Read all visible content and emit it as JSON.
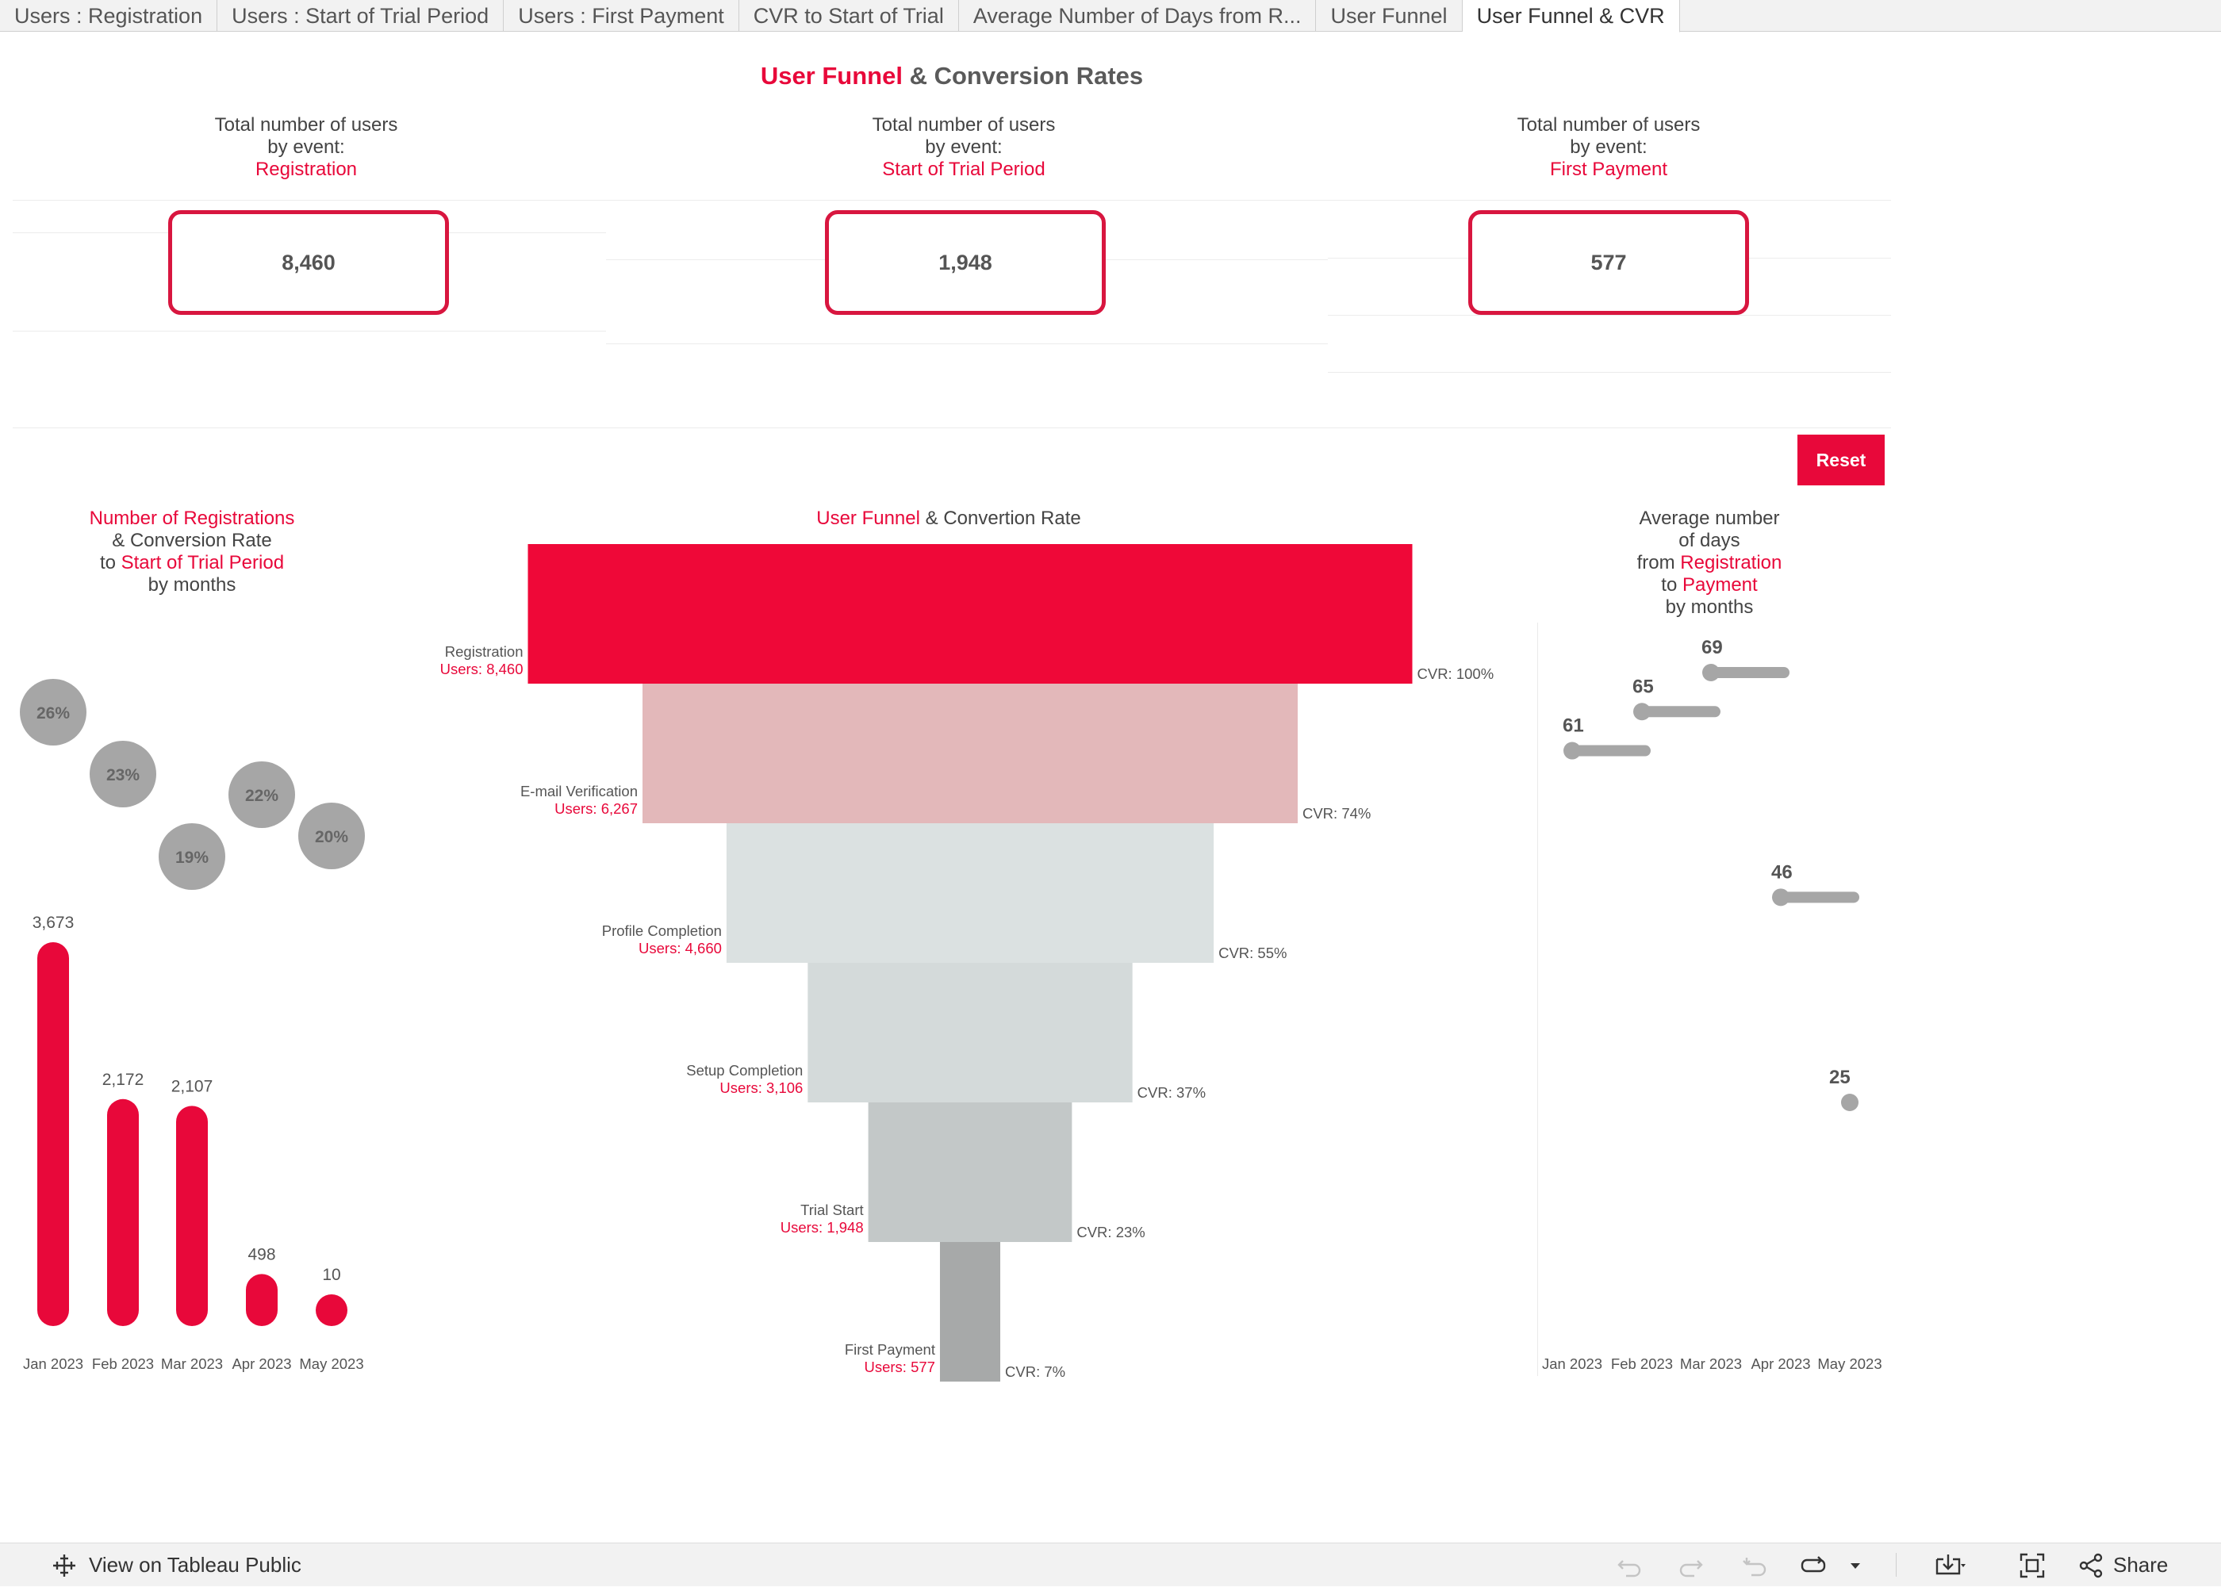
{
  "tabs": [
    {
      "label": "Users : Registration",
      "active": false
    },
    {
      "label": "Users : Start of Trial Period",
      "active": false
    },
    {
      "label": "Users : First Payment",
      "active": false
    },
    {
      "label": "CVR to Start of Trial",
      "active": false
    },
    {
      "label": "Average Number of Days from R...",
      "active": false
    },
    {
      "label": "User Funnel",
      "active": false
    },
    {
      "label": "User Funnel & CVR",
      "active": true
    }
  ],
  "title": {
    "red": "User Funnel",
    "rest": " & Conversion Rates"
  },
  "kpis": [
    {
      "line1": "Total number of users",
      "line2": "by event:",
      "event": "Registration",
      "value": "8,460"
    },
    {
      "line1": "Total number of users",
      "line2": "by event:",
      "event": "Start of Trial Period",
      "value": "1,948"
    },
    {
      "line1": "Total number of users",
      "line2": "by event:",
      "event": "First Payment",
      "value": "577"
    }
  ],
  "reset_label": "Reset",
  "left_chart_title": {
    "l1_red": "Number of Registrations",
    "l2": "& Conversion Rate",
    "l3_pre": "to ",
    "l3_red": "Start of Trial Period",
    "l4": "by months"
  },
  "funnel_title": {
    "red": "User Funnel",
    "rest": " & Convertion Rate"
  },
  "right_chart_title": {
    "l1": "Average number",
    "l2": "of days",
    "l3_pre": "from ",
    "l3_red": "Registration",
    "l4_pre": "to ",
    "l4_red": "Payment",
    "l5": "by months"
  },
  "chart_data": [
    {
      "type": "bar",
      "categories": [
        "Jan 2023",
        "Feb 2023",
        "Mar 2023",
        "Apr 2023",
        "May 2023"
      ],
      "series": [
        {
          "name": "Number of Registrations",
          "values": [
            3673,
            2172,
            2107,
            498,
            10
          ]
        },
        {
          "name": "Conversion Rate to Start of Trial Period",
          "values": [
            26,
            23,
            19,
            22,
            20
          ]
        }
      ],
      "value_labels": [
        "3,673",
        "2,172",
        "2,107",
        "498",
        "10"
      ],
      "cvr_labels": [
        "26%",
        "23%",
        "19%",
        "22%",
        "20%"
      ],
      "title": "Number of Registrations & Conversion Rate to Start of Trial Period by months"
    },
    {
      "type": "bar",
      "subtype": "funnel",
      "title": "User Funnel & Convertion Rate",
      "stages": [
        {
          "name": "Registration",
          "users": 8460,
          "users_label": "Users: 8,460",
          "cvr_label": "CVR: 100%",
          "color": "#ef0838"
        },
        {
          "name": "E-mail Verification",
          "users": 6267,
          "users_label": "Users: 6,267",
          "cvr_label": "CVR: 74%",
          "color": "#e3b8ba"
        },
        {
          "name": "Profile Completion",
          "users": 4660,
          "users_label": "Users: 4,660",
          "cvr_label": "CVR: 55%",
          "color": "#dbe1e1"
        },
        {
          "name": "Setup Completion",
          "users": 3106,
          "users_label": "Users: 3,106",
          "cvr_label": "CVR: 37%",
          "color": "#d4dada"
        },
        {
          "name": "Trial Start",
          "users": 1948,
          "users_label": "Users: 1,948",
          "cvr_label": "CVR: 23%",
          "color": "#c3c8c8"
        },
        {
          "name": "First Payment",
          "users": 577,
          "users_label": "Users: 577",
          "cvr_label": "CVR: 7%",
          "color": "#a7a9a9"
        }
      ]
    },
    {
      "type": "scatter",
      "title": "Average number of days from Registration to Payment by months",
      "categories": [
        "Jan 2023",
        "Feb 2023",
        "Mar 2023",
        "Apr 2023",
        "May 2023"
      ],
      "values": [
        61,
        65,
        69,
        46,
        25
      ],
      "value_labels": [
        "61",
        "65",
        "69",
        "46",
        "25"
      ]
    }
  ],
  "colors": {
    "accent": "#e8083a",
    "grey_marker": "#a6a6a6"
  },
  "bottom_bar": {
    "view_label": "View on Tableau Public",
    "share_label": "Share",
    "icons": [
      "tableau-icon",
      "undo-icon",
      "redo-icon",
      "revert-icon",
      "refresh-icon",
      "dropdown-icon",
      "download-icon",
      "fullscreen-icon",
      "share-icon"
    ]
  }
}
